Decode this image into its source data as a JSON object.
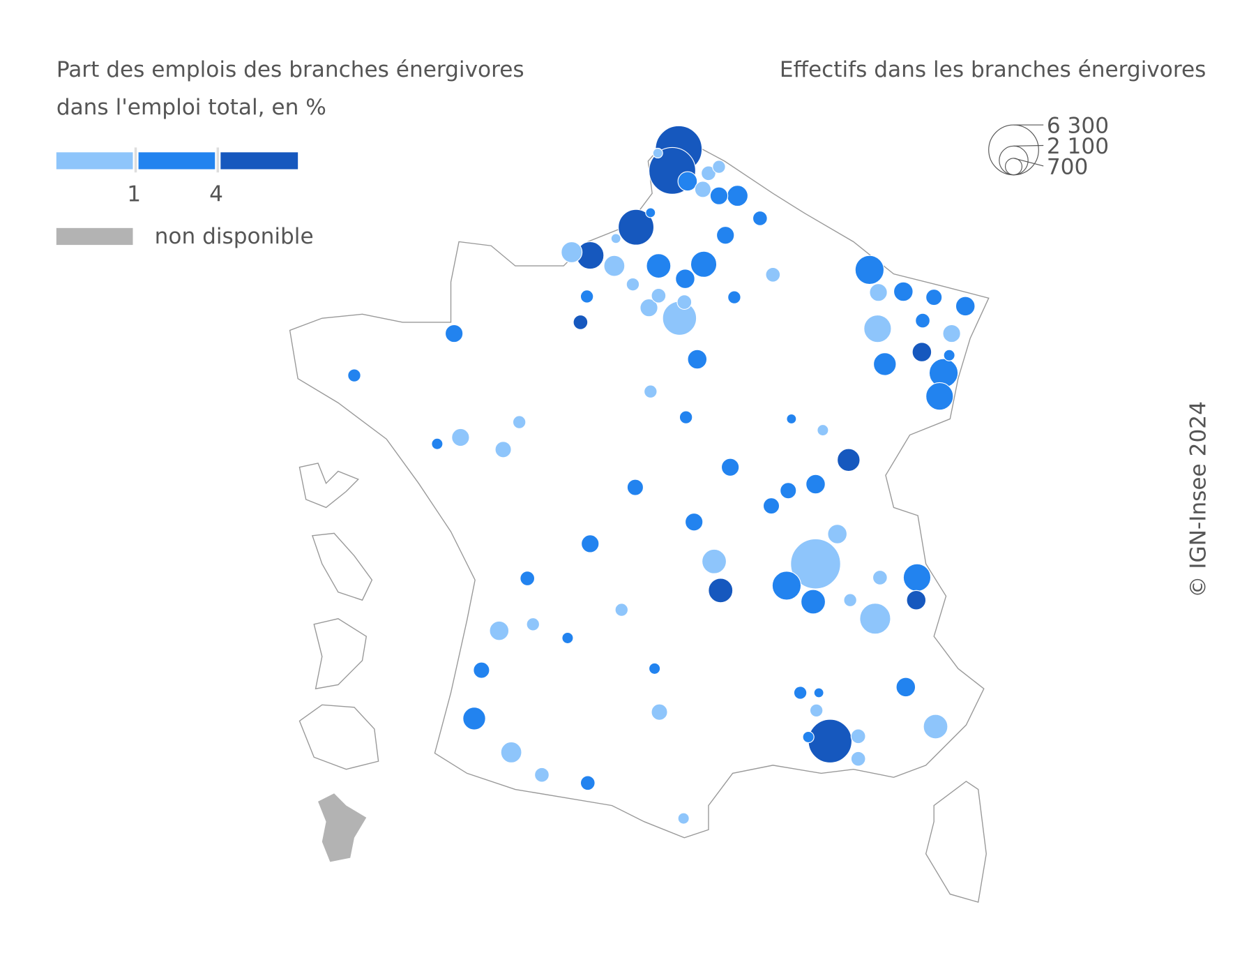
{
  "legend_colors": {
    "title": [
      "Part des emplois des branches énergivores",
      "dans l'emploi total, en %"
    ],
    "colors": [
      "#8ec5fb",
      "#2283ef",
      "#1658be"
    ],
    "thresholds": [
      1,
      4
    ],
    "missing_label": "non disponible",
    "missing_color": "#b3b3b3"
  },
  "legend_sizes": {
    "title": "Effectifs dans les branches énergivores",
    "values": [
      {
        "value": 6300,
        "label": "6 300"
      },
      {
        "value": 2100,
        "label": "2 100"
      },
      {
        "value": 700,
        "label": "700"
      }
    ]
  },
  "bubbles": [
    {
      "color": "#8ec5fb",
      "values": [
        1100,
        1100,
        2900,
        530,
        790,
        530,
        790,
        1900,
        790,
        6300,
        940,
        2400,
        530,
        1500,
        530,
        530,
        1500,
        420,
        530,
        420,
        660,
        530,
        790,
        660,
        420,
        940,
        1100,
        530,
        660,
        320,
        420,
        420,
        420,
        420,
        240,
        240,
        320,
        420
      ]
    },
    {
      "color": "#2283ef",
      "values": [
        1500,
        1700,
        940,
        940,
        2100,
        940,
        660,
        940,
        530,
        1300,
        2100,
        1900,
        940,
        660,
        660,
        790,
        2100,
        1500,
        1900,
        790,
        940,
        420,
        240,
        320,
        1100,
        790,
        790,
        530,
        940,
        420,
        790,
        420,
        320,
        660,
        790,
        530,
        660,
        1300,
        530,
        320,
        320,
        420,
        420,
        240,
        240,
        320
      ]
    },
    {
      "color": "#1658be",
      "values": [
        5500,
        5500,
        3200,
        1900,
        940,
        1300,
        940,
        1500,
        4800,
        530
      ]
    }
  ],
  "copyright": "© IGN-Insee 2024"
}
